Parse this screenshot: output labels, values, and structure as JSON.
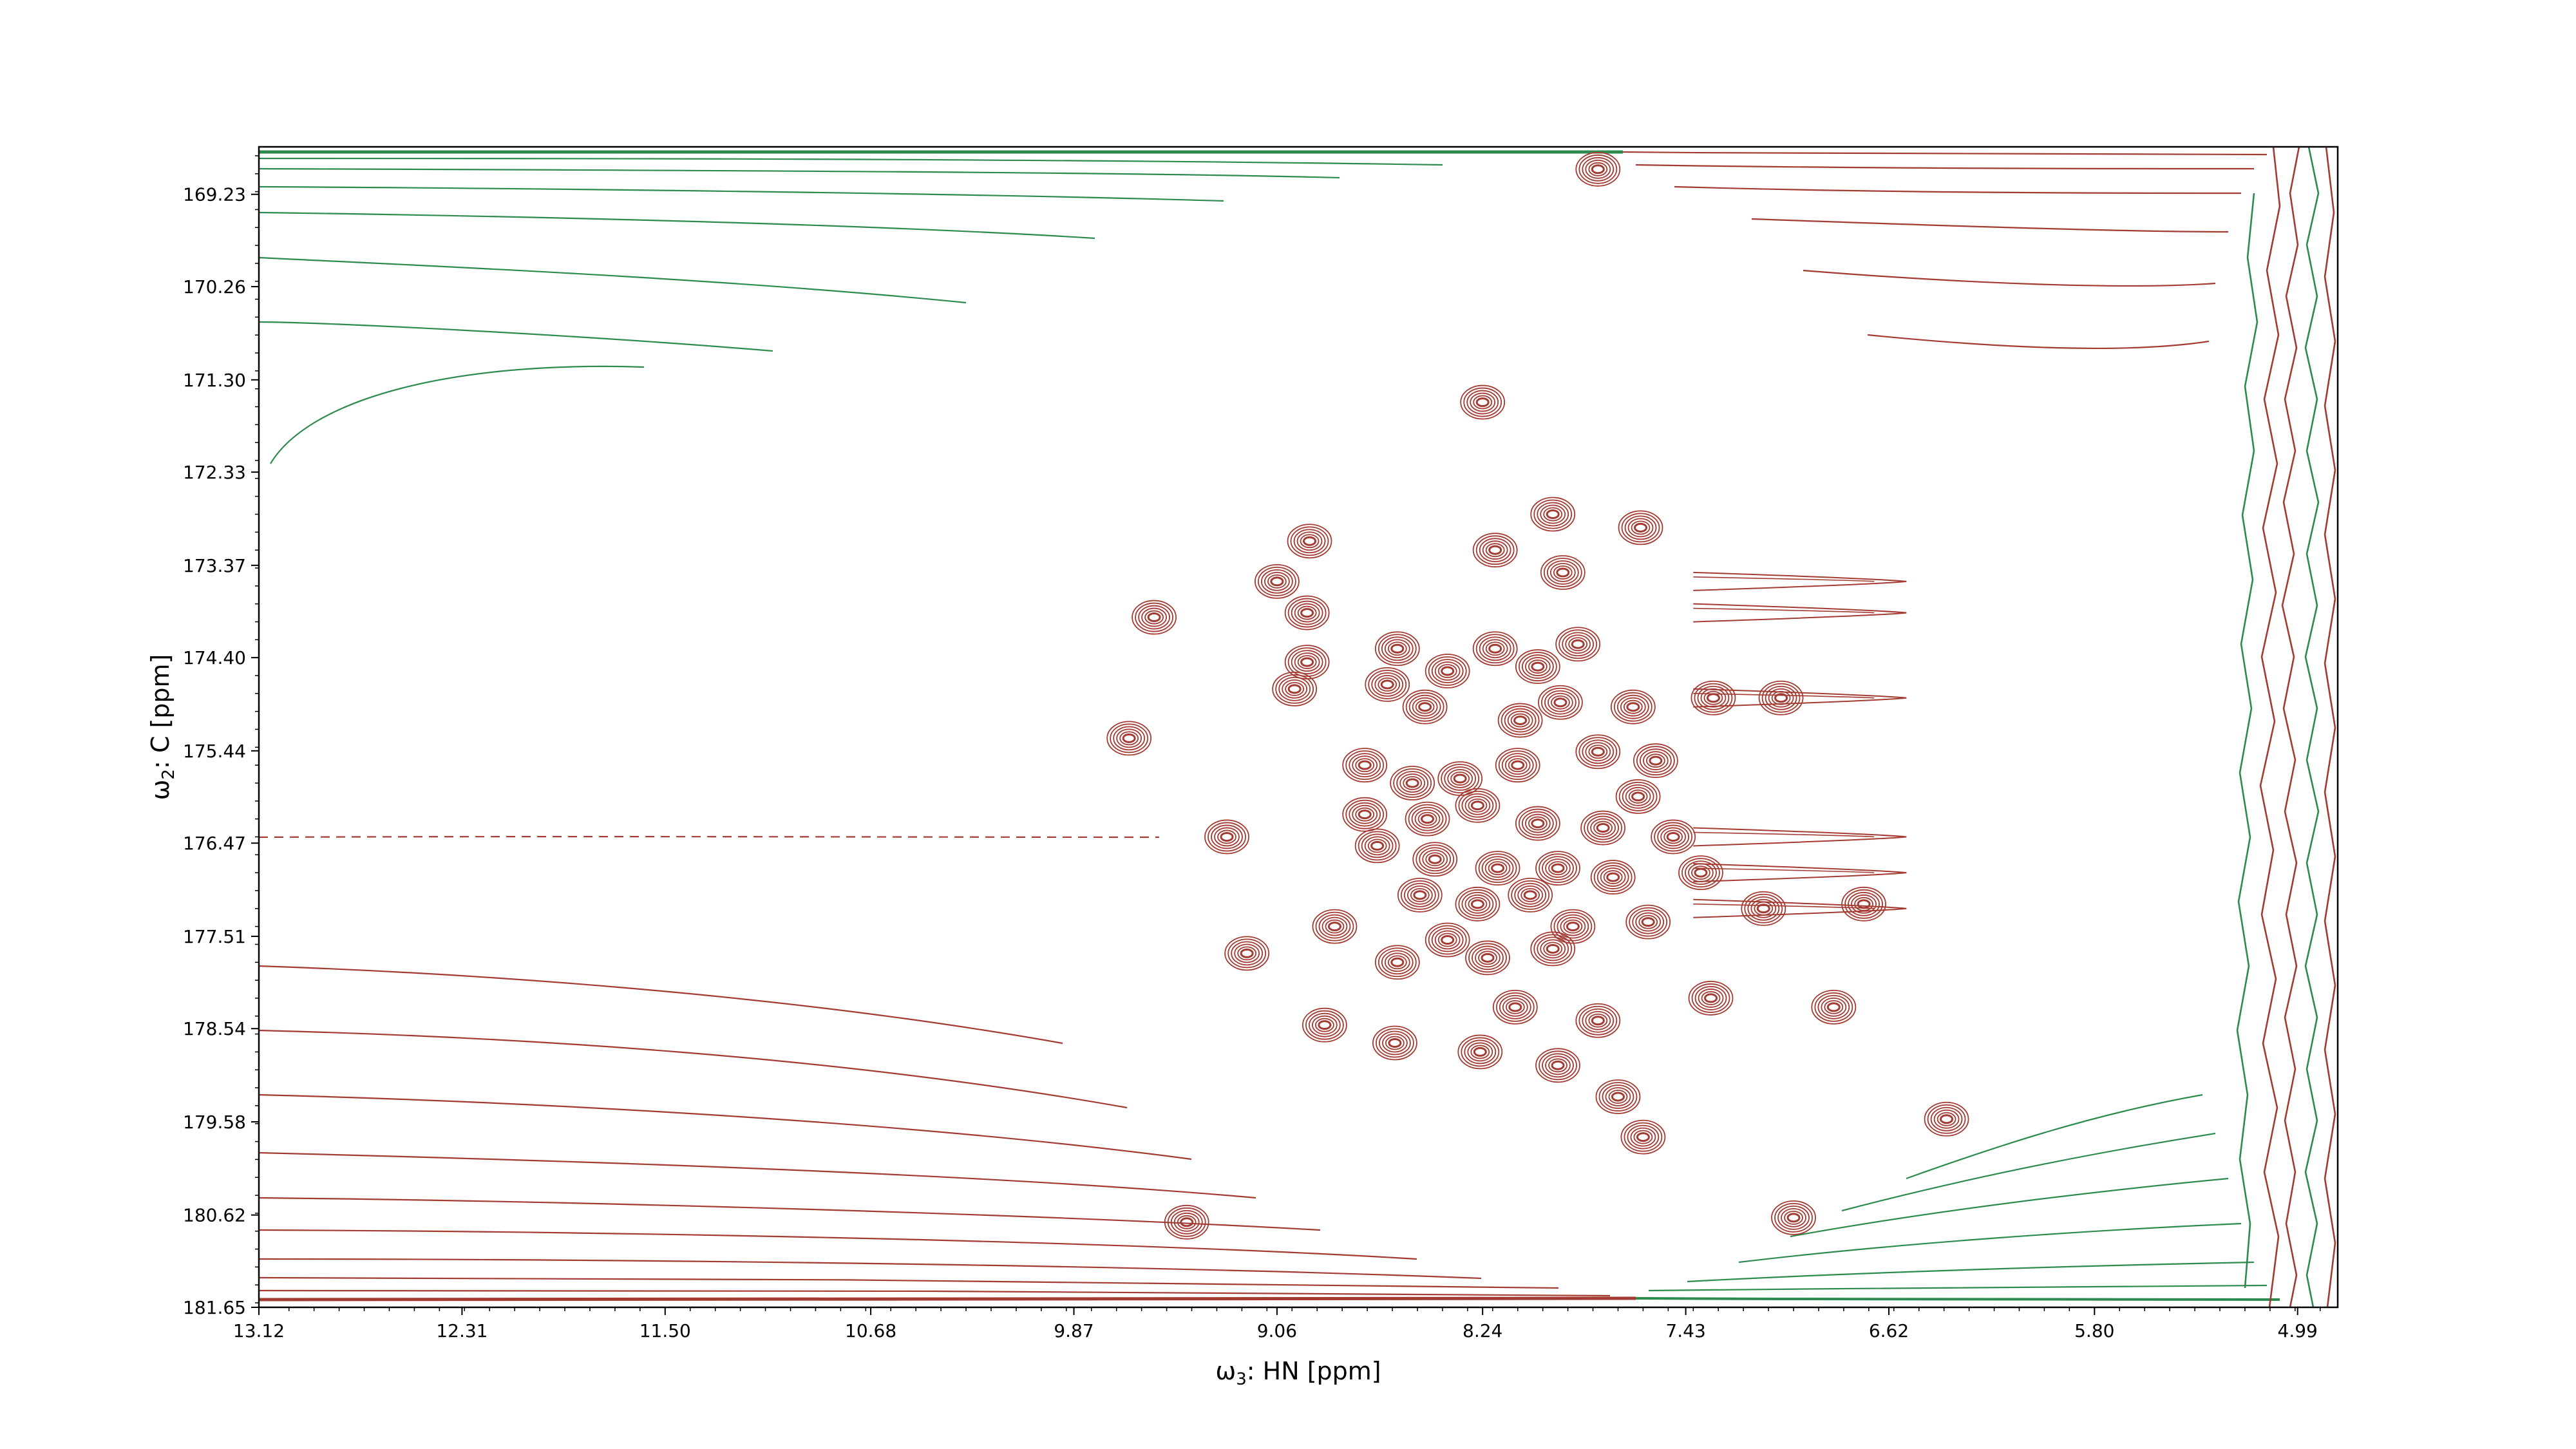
{
  "chart_data": {
    "type": "contour",
    "xlabel": "ω3: HN [ppm]",
    "ylabel": "ω2: C [ppm]",
    "xlabel_parts": {
      "sym": "ω",
      "sub": "3",
      "text": ": HN [ppm]"
    },
    "ylabel_parts": {
      "sym": "ω",
      "sub": "2",
      "text": ": C [ppm]"
    },
    "x_ticks": [
      "13.12",
      "12.31",
      "11.50",
      "10.68",
      "9.87",
      "9.06",
      "8.24",
      "7.43",
      "6.62",
      "5.80",
      "4.99"
    ],
    "y_ticks": [
      "169.23",
      "170.26",
      "171.30",
      "172.33",
      "173.37",
      "174.40",
      "175.44",
      "176.47",
      "177.51",
      "178.54",
      "179.58",
      "180.62",
      "181.65"
    ],
    "xlim": [
      13.12,
      4.83
    ],
    "ylim": [
      181.65,
      168.7
    ],
    "x_inverted": true,
    "y_inverted": true,
    "colors": {
      "positive": "#a33b32",
      "negative": "#2e8b4f"
    },
    "peaks": [
      {
        "x": 7.78,
        "y": 168.95
      },
      {
        "x": 8.24,
        "y": 171.55
      },
      {
        "x": 8.93,
        "y": 173.1
      },
      {
        "x": 9.06,
        "y": 173.55
      },
      {
        "x": 8.94,
        "y": 173.9
      },
      {
        "x": 9.55,
        "y": 173.95
      },
      {
        "x": 8.19,
        "y": 173.2
      },
      {
        "x": 7.92,
        "y": 173.45
      },
      {
        "x": 7.61,
        "y": 172.95
      },
      {
        "x": 7.96,
        "y": 172.8
      },
      {
        "x": 8.94,
        "y": 174.45
      },
      {
        "x": 8.99,
        "y": 174.75
      },
      {
        "x": 8.58,
        "y": 174.3
      },
      {
        "x": 8.62,
        "y": 174.7
      },
      {
        "x": 8.38,
        "y": 174.55
      },
      {
        "x": 8.19,
        "y": 174.3
      },
      {
        "x": 8.02,
        "y": 174.5
      },
      {
        "x": 7.86,
        "y": 174.25
      },
      {
        "x": 7.93,
        "y": 174.9
      },
      {
        "x": 8.47,
        "y": 174.95
      },
      {
        "x": 8.09,
        "y": 175.1
      },
      {
        "x": 7.64,
        "y": 174.95
      },
      {
        "x": 7.32,
        "y": 174.85
      },
      {
        "x": 7.05,
        "y": 174.85
      },
      {
        "x": 9.65,
        "y": 175.3
      },
      {
        "x": 8.71,
        "y": 175.6
      },
      {
        "x": 8.52,
        "y": 175.8
      },
      {
        "x": 8.33,
        "y": 175.75
      },
      {
        "x": 8.1,
        "y": 175.6
      },
      {
        "x": 7.78,
        "y": 175.45
      },
      {
        "x": 7.55,
        "y": 175.55
      },
      {
        "x": 7.62,
        "y": 175.95
      },
      {
        "x": 8.71,
        "y": 176.15
      },
      {
        "x": 8.46,
        "y": 176.2
      },
      {
        "x": 8.26,
        "y": 176.05
      },
      {
        "x": 8.02,
        "y": 176.25
      },
      {
        "x": 7.76,
        "y": 176.3
      },
      {
        "x": 7.48,
        "y": 176.4
      },
      {
        "x": 9.26,
        "y": 176.4
      },
      {
        "x": 8.66,
        "y": 176.5
      },
      {
        "x": 8.43,
        "y": 176.65
      },
      {
        "x": 8.18,
        "y": 176.75
      },
      {
        "x": 7.94,
        "y": 176.75
      },
      {
        "x": 7.72,
        "y": 176.85
      },
      {
        "x": 7.37,
        "y": 176.8
      },
      {
        "x": 8.49,
        "y": 177.05
      },
      {
        "x": 8.26,
        "y": 177.15
      },
      {
        "x": 8.05,
        "y": 177.05
      },
      {
        "x": 7.88,
        "y": 177.4
      },
      {
        "x": 7.58,
        "y": 177.35
      },
      {
        "x": 7.12,
        "y": 177.2
      },
      {
        "x": 6.72,
        "y": 177.15
      },
      {
        "x": 8.38,
        "y": 177.55
      },
      {
        "x": 8.58,
        "y": 177.8
      },
      {
        "x": 8.83,
        "y": 177.4
      },
      {
        "x": 9.18,
        "y": 177.7
      },
      {
        "x": 8.22,
        "y": 177.75
      },
      {
        "x": 7.96,
        "y": 177.65
      },
      {
        "x": 7.33,
        "y": 178.2
      },
      {
        "x": 7.78,
        "y": 178.45
      },
      {
        "x": 8.11,
        "y": 178.3
      },
      {
        "x": 8.59,
        "y": 178.7
      },
      {
        "x": 8.87,
        "y": 178.5
      },
      {
        "x": 8.25,
        "y": 178.8
      },
      {
        "x": 7.94,
        "y": 178.95
      },
      {
        "x": 7.7,
        "y": 179.3
      },
      {
        "x": 7.6,
        "y": 179.75
      },
      {
        "x": 9.42,
        "y": 180.7
      },
      {
        "x": 6.84,
        "y": 178.3
      },
      {
        "x": 6.39,
        "y": 179.55
      },
      {
        "x": 7.0,
        "y": 180.65
      }
    ],
    "streak_rows": [
      173.55,
      173.9,
      174.85,
      176.4,
      176.8,
      177.2
    ]
  }
}
